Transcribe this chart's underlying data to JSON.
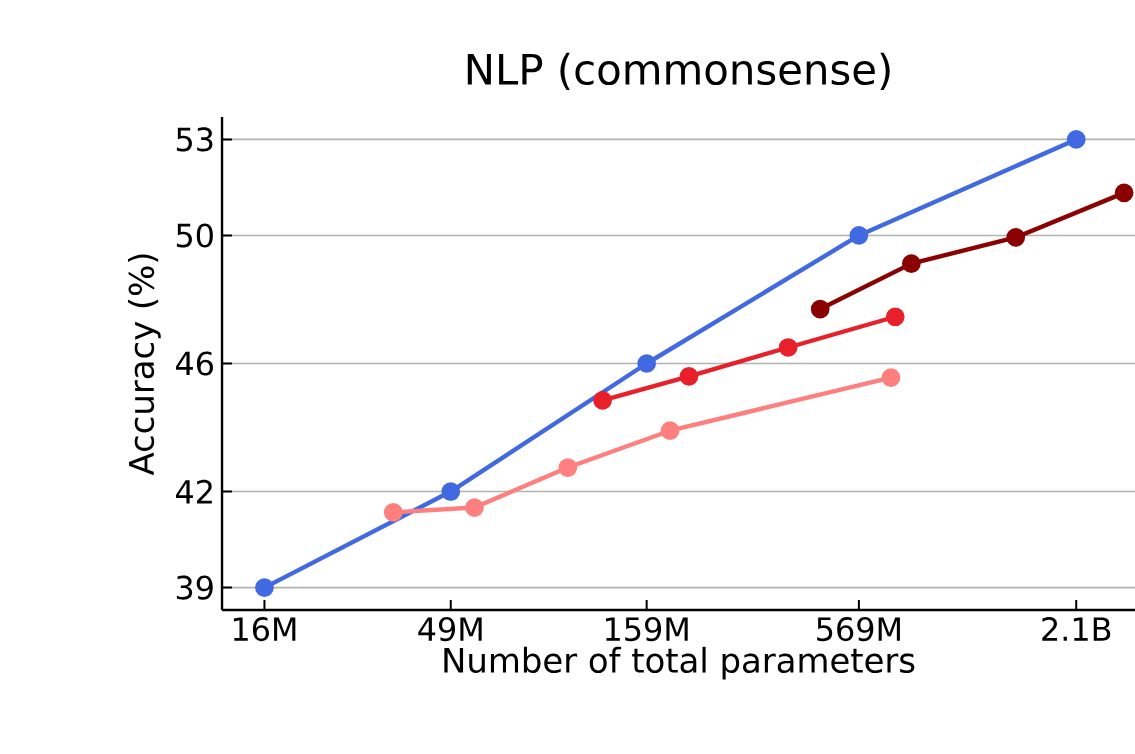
{
  "chart_data": {
    "type": "line",
    "title": "NLP (commonsense)",
    "xlabel": "Number of total parameters",
    "ylabel": "Accuracy (%)",
    "log": "x",
    "grid": "y",
    "marker": "circle",
    "line_style": "solid",
    "xlim": [
      12400000,
      2990000000
    ],
    "ylim": [
      38.3,
      53.7
    ],
    "xticks": [
      {
        "value": 16000000,
        "label": "16M"
      },
      {
        "value": 49000000,
        "label": "49M"
      },
      {
        "value": 159000000,
        "label": "159M"
      },
      {
        "value": 569000000,
        "label": "569M"
      },
      {
        "value": 2100000000,
        "label": "2.1B"
      }
    ],
    "yticks": [
      39,
      42,
      46,
      50,
      53
    ],
    "series": [
      {
        "color": "#4169e1",
        "x": [
          16000000,
          49000000,
          159000000,
          569000000,
          2100000000
        ],
        "values": [
          39,
          42,
          46,
          50,
          53
        ]
      },
      {
        "color": "#ff7f7f",
        "x": [
          34700000,
          56500000,
          99000000,
          183000000,
          690000000
        ],
        "values": [
          41.35,
          41.5,
          42.75,
          43.9,
          45.56
        ]
      },
      {
        "color": "#e8202a",
        "x": [
          122000000,
          205000000,
          372000000,
          708000000
        ],
        "values": [
          44.85,
          45.6,
          46.5,
          47.46
        ]
      },
      {
        "color": "#8b0000",
        "x": [
          451000000,
          780000000,
          1460000000,
          2800000000
        ],
        "values": [
          47.7,
          49.12,
          49.94,
          51.33
        ]
      }
    ]
  }
}
